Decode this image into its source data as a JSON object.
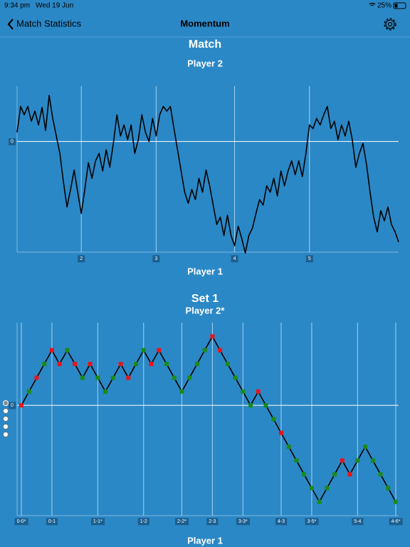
{
  "status_bar": {
    "time": "9:34 pm",
    "date": "Wed 19 Jun",
    "battery": "25%"
  },
  "nav": {
    "back": "Match Statistics",
    "title": "Momentum"
  },
  "chart_data": [
    {
      "type": "line",
      "title": "Match",
      "subtitle": "Player 2",
      "xlabel": "Player 1",
      "color": "#000000",
      "values": [
        1.0,
        3.8,
        2.9,
        3.8,
        2.2,
        3.3,
        1.8,
        3.7,
        1.2,
        5.0,
        2.5,
        0.6,
        -1.3,
        -4.4,
        -7.1,
        -5.2,
        -3.1,
        -5.5,
        -7.8,
        -5.2,
        -2.3,
        -4.0,
        -2.1,
        -1.3,
        -3.2,
        -0.9,
        -2.8,
        -0.2,
        2.9,
        0.6,
        1.8,
        0.2,
        1.8,
        -1.3,
        0.2,
        2.9,
        1.0,
        0,
        2.5,
        0.6,
        2.9,
        3.8,
        3.3,
        3.8,
        1.4,
        -0.9,
        -3.2,
        -5.5,
        -6.7,
        -5.2,
        -6.3,
        -4.0,
        -5.5,
        -3.1,
        -4.8,
        -6.9,
        -9.0,
        -8.2,
        -10.2,
        -8.0,
        -10.2,
        -11.3,
        -9.2,
        -10.5,
        -12.1,
        -10.2,
        -9.4,
        -7.8,
        -6.3,
        -6.9,
        -4.8,
        -5.5,
        -4.0,
        -5.9,
        -3.2,
        -4.8,
        -3.2,
        -2.1,
        -3.6,
        -2.1,
        -3.8,
        -1.3,
        1.8,
        1.4,
        2.5,
        1.8,
        2.9,
        3.8,
        1.4,
        2.2,
        0.2,
        1.8,
        0.6,
        2.2,
        0.2,
        -2.8,
        -1.3,
        -0.2,
        -2.5,
        -5.5,
        -8.2,
        -9.8,
        -7.5,
        -8.6,
        -7.1,
        -9.0,
        -9.8,
        -10.9
      ],
      "xlim": [
        0,
        107
      ],
      "xticks": [
        {
          "value": 18,
          "label": "2"
        },
        {
          "value": 39,
          "label": "3"
        },
        {
          "value": 61,
          "label": "4"
        },
        {
          "value": 82,
          "label": "5"
        }
      ],
      "ylim": [
        -12,
        6
      ],
      "yticks": [
        0
      ],
      "grid": true
    },
    {
      "type": "line",
      "markers": true,
      "title": "Set 1",
      "subtitle": "Player 2*",
      "xlabel": "Player 1",
      "color": "#000000",
      "values": [
        0,
        1,
        2,
        3,
        4,
        3,
        4,
        3,
        2,
        3,
        2,
        1,
        2,
        3,
        2,
        3,
        4,
        3,
        4,
        3,
        2,
        1,
        2,
        3,
        4,
        5,
        4,
        3,
        2,
        1,
        0,
        1,
        0,
        -1,
        -2,
        -3,
        -4,
        -5,
        -6,
        -7,
        -6,
        -5,
        -4,
        -5,
        -4,
        -3,
        -4,
        -5,
        -6,
        -7
      ],
      "marker_colors": [
        "#e8141a",
        "#1a8a1a",
        "#e8141a",
        "#1a8a1a",
        "#e8141a",
        "#e8141a",
        "#1a8a1a",
        "#e8141a",
        "#1a8a1a",
        "#e8141a",
        "#1a8a1a",
        "#1a8a1a",
        "#1a8a1a",
        "#e8141a",
        "#e8141a",
        "#1a8a1a",
        "#1a8a1a",
        "#e8141a",
        "#e8141a",
        "#1a8a1a",
        "#1a8a1a",
        "#1a8a1a",
        "#1a8a1a",
        "#1a8a1a",
        "#1a8a1a",
        "#e8141a",
        "#e8141a",
        "#1a8a1a",
        "#1a8a1a",
        "#1a8a1a",
        "#1a8a1a",
        "#e8141a",
        "#1a8a1a",
        "#1a8a1a",
        "#e8141a",
        "#1a8a1a",
        "#1a8a1a",
        "#1a8a1a",
        "#1a8a1a",
        "#1a8a1a",
        "#1a8a1a",
        "#1a8a1a",
        "#e8141a",
        "#e8141a",
        "#1a8a1a",
        "#1a8a1a",
        "#1a8a1a",
        "#1a8a1a",
        "#1a8a1a",
        "#1a8a1a"
      ],
      "xlim": [
        0,
        49
      ],
      "xticks": [
        {
          "value": 0,
          "label": "0-0*"
        },
        {
          "value": 4,
          "label": "0-1"
        },
        {
          "value": 10,
          "label": "1-1*"
        },
        {
          "value": 16,
          "label": "1-2"
        },
        {
          "value": 21,
          "label": "2-2*"
        },
        {
          "value": 25,
          "label": "2-3"
        },
        {
          "value": 29,
          "label": "3-3*"
        },
        {
          "value": 34,
          "label": "4-3"
        },
        {
          "value": 38,
          "label": "3-5*"
        },
        {
          "value": 44,
          "label": "5-4"
        },
        {
          "value": 49,
          "label": "4-6*"
        }
      ],
      "ylim": [
        -8,
        6
      ],
      "yticks": [
        0
      ],
      "grid": true
    }
  ]
}
